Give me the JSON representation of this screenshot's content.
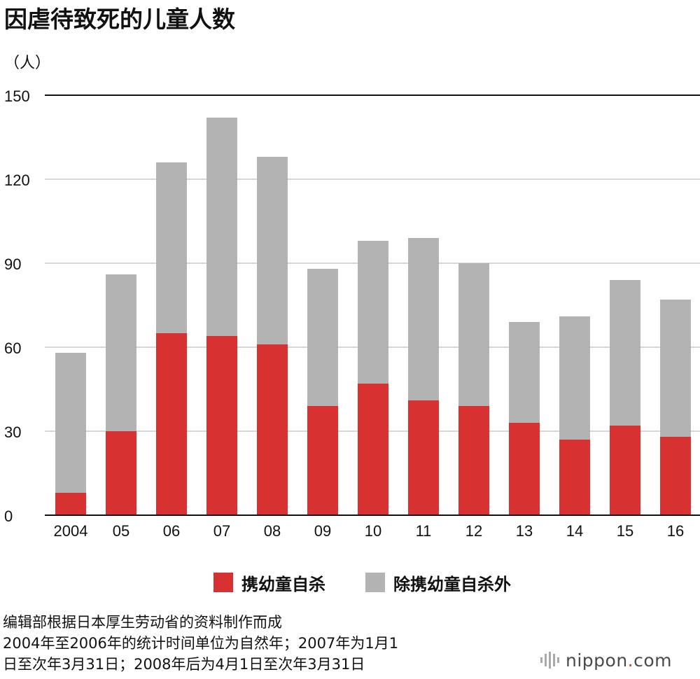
{
  "title": "因虐待致死的儿童人数",
  "unit_label": "（人）",
  "legend": [
    "携幼童自杀",
    "除携幼童自杀外"
  ],
  "notes": [
    "编辑部根据日本厚生劳动省的资料制作而成",
    "2004年至2006年的统计时间单位为自然年；2007年为1月1",
    "日至次年3月31日；2008年后为4月1日至次年3月31日"
  ],
  "logo": {
    "main": "nippon",
    "dot": ".",
    "suffix": "com"
  },
  "colors": {
    "red": "#d83131",
    "gray": "#b3b3b3",
    "grid": "#cccccc",
    "axis": "#111111"
  },
  "chart_data": {
    "type": "bar",
    "stacked": true,
    "title": "因虐待致死的儿童人数",
    "ylabel": "（人）",
    "categories": [
      "2004",
      "05",
      "06",
      "07",
      "08",
      "09",
      "10",
      "11",
      "12",
      "13",
      "14",
      "15",
      "16"
    ],
    "series": [
      {
        "name": "携幼童自杀",
        "values": [
          8,
          30,
          65,
          64,
          61,
          39,
          47,
          41,
          39,
          33,
          27,
          32,
          28
        ]
      },
      {
        "name": "除携幼童自杀外",
        "values": [
          50,
          56,
          61,
          78,
          67,
          49,
          51,
          58,
          51,
          36,
          44,
          52,
          49
        ]
      }
    ],
    "ylim": [
      0,
      150
    ],
    "yticks": [
      0,
      30,
      60,
      90,
      120,
      150
    ],
    "grid": true
  }
}
